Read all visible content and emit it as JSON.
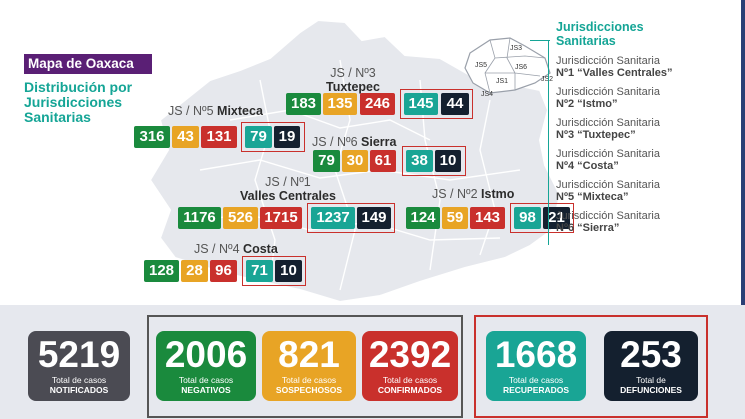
{
  "header": {
    "badge": "Mapa de Oaxaca",
    "subtitle_lines": [
      "Distribución por",
      "Jurisdicciones",
      "Sanitarias"
    ]
  },
  "regions": {
    "tuxtepec": {
      "line1": "JS / Nº3",
      "line2": "Tuxtepec",
      "values": [
        183,
        135,
        246,
        145,
        44
      ]
    },
    "mixteca": {
      "prefix": "JS / Nº5",
      "name": "Mixteca",
      "values": [
        316,
        43,
        131,
        79,
        19
      ]
    },
    "sierra": {
      "prefix": "JS / Nº6",
      "name": "Sierra",
      "values": [
        79,
        30,
        61,
        38,
        10
      ]
    },
    "valles": {
      "line1": "JS / Nº1",
      "line2": "Valles Centrales",
      "values": [
        1176,
        526,
        1715,
        1237,
        149
      ]
    },
    "istmo": {
      "prefix": "JS / Nº2",
      "name": "Istmo",
      "values": [
        124,
        59,
        143,
        98,
        21
      ]
    },
    "costa": {
      "prefix": "JS / Nº4",
      "name": "Costa",
      "values": [
        128,
        28,
        96,
        71,
        10
      ]
    }
  },
  "jurisdicciones": {
    "heading": [
      "Jurisdicciones",
      "Sanitarias"
    ],
    "items": [
      {
        "label": "Jurisdicción Sanitaria",
        "name": "Nº1 “Valles Centrales”"
      },
      {
        "label": "Jurisdicción Sanitaria",
        "name": "Nº2 “Istmo”"
      },
      {
        "label": "Jurisdicción Sanitaria",
        "name": "Nº3 “Tuxtepec”"
      },
      {
        "label": "Jurisdicción Sanitaria",
        "name": "Nº4 “Costa”"
      },
      {
        "label": "Jurisdicción Sanitaria",
        "name": "Nº5 “Mixteca”"
      },
      {
        "label": "Jurisdicción Sanitaria",
        "name": "Nº6 “Sierra”"
      }
    ],
    "mini_map_labels": [
      "JS3",
      "JS5",
      "JS6",
      "JS1",
      "JS2",
      "JS4"
    ]
  },
  "totals": {
    "notificados": {
      "value": "5219",
      "label": "Total de casos",
      "label2": "NOTIFICADOS"
    },
    "negativos": {
      "value": "2006",
      "label": "Total de casos",
      "label2": "NEGATIVOS"
    },
    "sospechosos": {
      "value": "821",
      "label": "Total de casos",
      "label2": "SOSPECHOSOS"
    },
    "confirmados": {
      "value": "2392",
      "label": "Total de casos",
      "label2": "CONFIRMADOS"
    },
    "recuperados": {
      "value": "1668",
      "label": "Total de casos",
      "label2": "RECUPERADOS"
    },
    "defunciones": {
      "value": "253",
      "label": "Total de",
      "label2": "DEFUNCIONES"
    }
  },
  "colors": {
    "negativos": "#1a8a3d",
    "sospechosos": "#e8a425",
    "confirmados": "#c9302c",
    "recuperados": "#19a595",
    "defunciones": "#14202f",
    "notificados": "#4b4b53",
    "brand": "#5a1f75",
    "teal": "#15a596"
  }
}
